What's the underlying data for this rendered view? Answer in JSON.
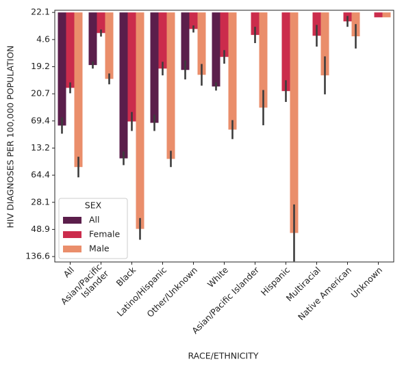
{
  "chart_data": {
    "type": "bar",
    "x_label": "RACE/ETHNICITY",
    "y_label": "HIV DIAGNOSES PER 100,000 POPULATION",
    "categories": [
      "All",
      "Asian/Pacific\nIslander",
      "Black",
      "Latino/Hispanic",
      "Other/Unknown",
      "White",
      "Asian/Pacific Islander",
      "Hispanic",
      "Multiracial",
      "Native American",
      "Unknown"
    ],
    "series": [
      {
        "name": "All",
        "color": "#5b1e4b",
        "values": [
          4.17,
          1.94,
          5.38,
          4.07,
          2.12,
          2.73,
          null,
          null,
          null,
          null,
          null
        ],
        "errors": [
          0.3,
          0.13,
          0.25,
          0.3,
          0.35,
          0.15,
          null,
          null,
          null,
          null,
          null
        ]
      },
      {
        "name": "Female",
        "color": "#cb2c4c",
        "values": [
          2.78,
          0.76,
          4.02,
          2.07,
          0.61,
          1.64,
          0.83,
          2.9,
          0.86,
          0.33,
          0.18
        ],
        "errors": [
          0.2,
          0.13,
          0.35,
          0.25,
          0.13,
          0.25,
          0.3,
          0.4,
          0.4,
          0.2,
          0
        ]
      },
      {
        "name": "Male",
        "color": "#ea8e6b",
        "values": [
          5.7,
          2.45,
          7.98,
          5.4,
          2.3,
          4.32,
          3.51,
          8.13,
          2.32,
          0.88,
          0.18
        ],
        "errors": [
          0.38,
          0.2,
          0.4,
          0.3,
          0.4,
          0.35,
          0.65,
          1.05,
          0.7,
          0.45,
          0
        ]
      }
    ],
    "ylim": [
      -0.08,
      9.2
    ],
    "y_inverted": true,
    "yticks": [
      {
        "value": 0,
        "label": "22.1"
      },
      {
        "value": 1,
        "label": "4.6"
      },
      {
        "value": 2,
        "label": "19.2"
      },
      {
        "value": 3,
        "label": "20.7"
      },
      {
        "value": 4,
        "label": "69.4"
      },
      {
        "value": 5,
        "label": "13.2"
      },
      {
        "value": 6,
        "label": "64.4"
      },
      {
        "value": 7,
        "label": "28.1"
      },
      {
        "value": 8,
        "label": "48.9"
      },
      {
        "value": 9,
        "label": "136.6"
      }
    ],
    "legend_title": "SEX",
    "legend": "lower left"
  }
}
